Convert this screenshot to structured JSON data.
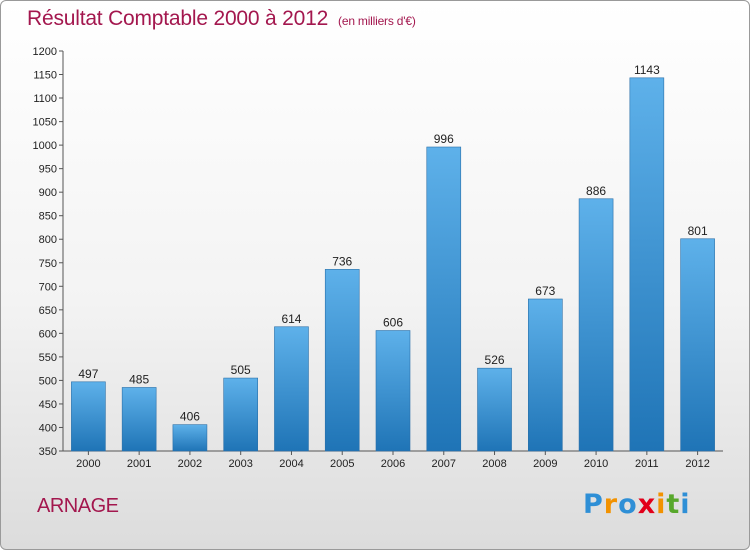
{
  "title": "Résultat Comptable 2000 à 2012",
  "subtitle": "(en milliers d'€)",
  "commune": "ARNAGE",
  "logo": {
    "letters": [
      "P",
      "r",
      "o",
      "x",
      "i",
      "t",
      "i"
    ],
    "colors": [
      "#2e8fd6",
      "#f29200",
      "#2e8fd6",
      "#e2001a",
      "#f29200",
      "#58a82c",
      "#2e8fd6"
    ]
  },
  "colors": {
    "bar_light": "#5eb1ea",
    "bar_dark": "#1f74b6",
    "title": "#a3174e"
  },
  "chart_data": {
    "type": "bar",
    "categories": [
      "2000",
      "2001",
      "2002",
      "2003",
      "2004",
      "2005",
      "2006",
      "2007",
      "2008",
      "2009",
      "2010",
      "2011",
      "2012"
    ],
    "values": [
      497,
      485,
      406,
      505,
      614,
      736,
      606,
      996,
      526,
      673,
      886,
      1143,
      801
    ],
    "title": "Résultat Comptable 2000 à 2012",
    "subtitle": "(en milliers d'€)",
    "xlabel": "",
    "ylabel": "",
    "ylim": [
      350,
      1200
    ],
    "yticks": [
      350,
      400,
      450,
      500,
      550,
      600,
      650,
      700,
      750,
      800,
      850,
      900,
      950,
      1000,
      1050,
      1100,
      1150,
      1200
    ],
    "grid": false,
    "legend": "none"
  }
}
